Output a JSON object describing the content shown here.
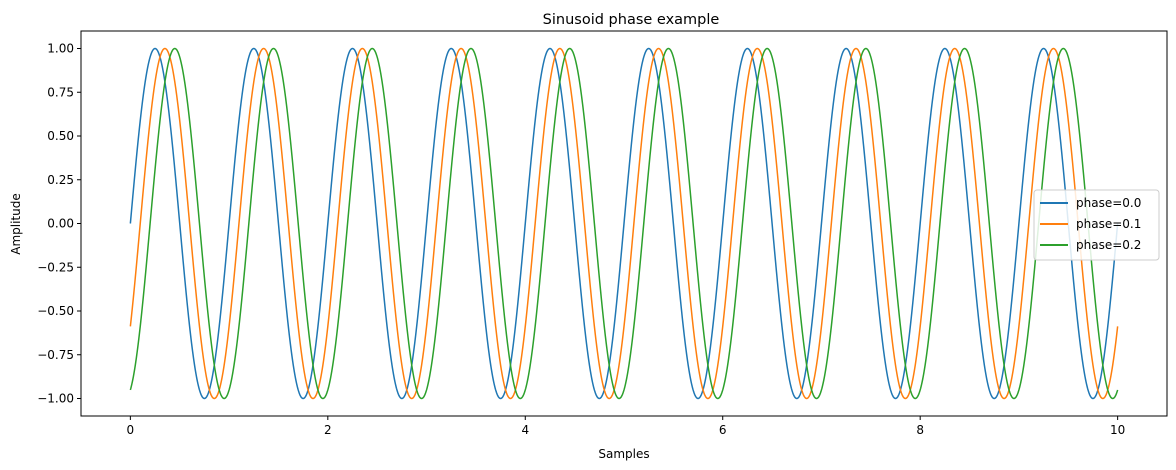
{
  "chart_data": {
    "type": "line",
    "title": "Sinusoid phase example",
    "xlabel": "Samples",
    "ylabel": "Amplitude",
    "xlim": [
      -0.5,
      10.5
    ],
    "ylim": [
      -1.1,
      1.1
    ],
    "xticks": [
      0,
      2,
      4,
      6,
      8,
      10
    ],
    "xtick_labels": [
      "0",
      "2",
      "4",
      "6",
      "8",
      "10"
    ],
    "yticks": [
      1.0,
      0.75,
      0.5,
      0.25,
      0.0,
      -0.25,
      -0.5,
      -0.75,
      -1.0
    ],
    "ytick_labels": [
      "1.00",
      "0.75",
      "0.50",
      "0.25",
      "0.00",
      "−0.25",
      "−0.50",
      "−0.75",
      "−1.00"
    ],
    "grid": false,
    "legend_position": "center-right",
    "function": "y = sin(2π(x − phase))",
    "x_range": [
      0,
      10
    ],
    "series": [
      {
        "name": "phase=0.0",
        "phase": 0.0,
        "color": "#1f77b4"
      },
      {
        "name": "phase=0.1",
        "phase": 0.1,
        "color": "#ff7f0e"
      },
      {
        "name": "phase=0.2",
        "phase": 0.2,
        "color": "#2ca02c"
      }
    ]
  }
}
